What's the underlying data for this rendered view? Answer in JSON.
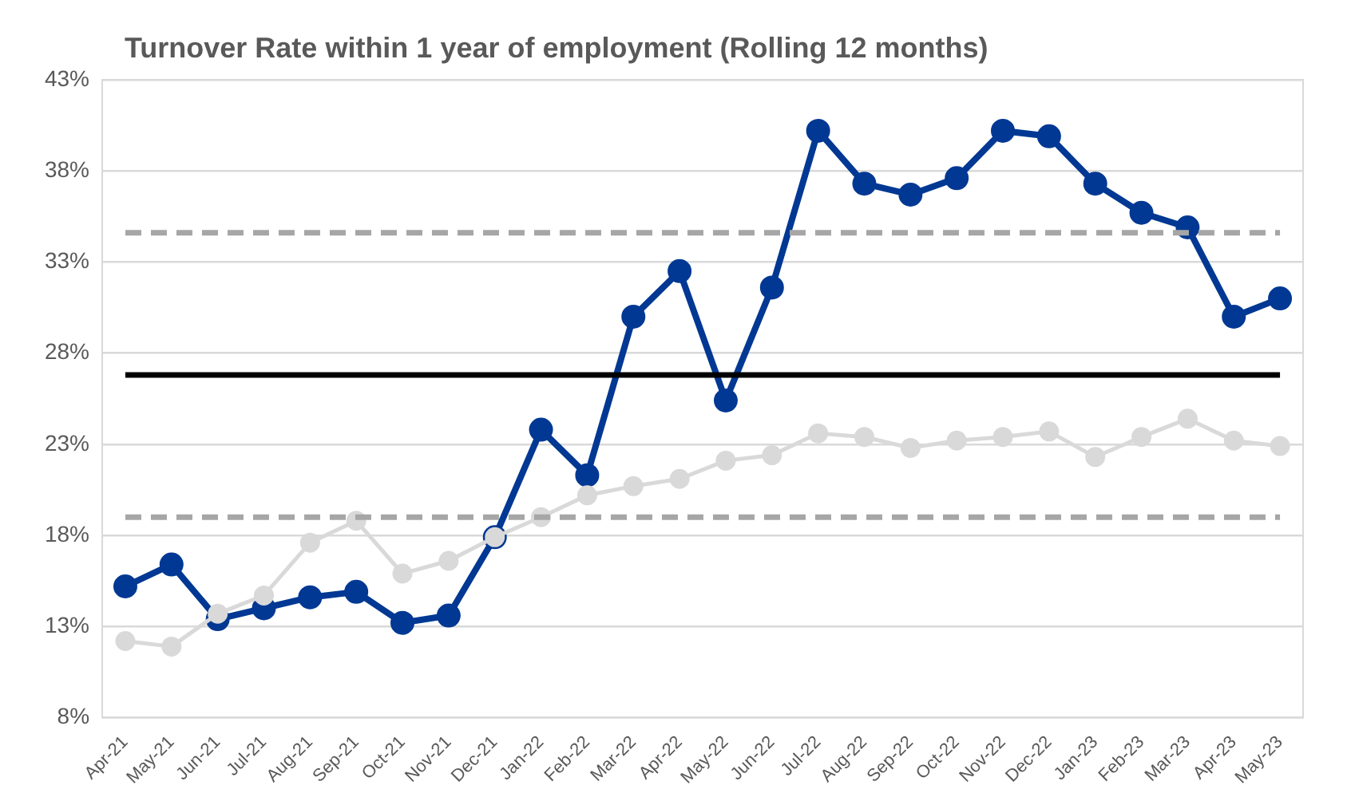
{
  "chart_data": {
    "type": "line",
    "title": "Turnover Rate within 1 year of employment (Rolling 12 months)",
    "categories": [
      "Apr-21",
      "May-21",
      "Jun-21",
      "Jul-21",
      "Aug-21",
      "Sep-21",
      "Oct-21",
      "Nov-21",
      "Dec-21",
      "Jan-22",
      "Feb-22",
      "Mar-22",
      "Apr-22",
      "May-22",
      "Jun-22",
      "Jul-22",
      "Aug-22",
      "Sep-22",
      "Oct-22",
      "Nov-22",
      "Dec-22",
      "Jan-23",
      "Feb-23",
      "Mar-23",
      "Apr-23",
      "May-23"
    ],
    "series": [
      {
        "color": "#d9d9d9",
        "values": [
          12.2,
          11.9,
          13.7,
          14.7,
          17.6,
          18.8,
          15.9,
          16.6,
          17.9,
          19.0,
          20.2,
          20.7,
          21.1,
          22.1,
          22.4,
          23.6,
          23.4,
          22.8,
          23.2,
          23.4,
          23.7,
          22.3,
          23.4,
          24.4,
          23.2,
          22.9
        ]
      },
      {
        "color": "#003893",
        "values": [
          15.2,
          16.4,
          13.4,
          14.0,
          14.6,
          14.9,
          13.2,
          13.6,
          17.9,
          23.8,
          21.3,
          30.0,
          32.5,
          25.4,
          31.6,
          40.2,
          37.3,
          36.7,
          37.6,
          40.2,
          39.9,
          37.3,
          35.7,
          34.9,
          30.0,
          31.0
        ]
      }
    ],
    "ylim": [
      8,
      43
    ],
    "yticks": [
      {
        "value": 8,
        "label": "8%"
      },
      {
        "value": 13,
        "label": "13%"
      },
      {
        "value": 18,
        "label": "18%"
      },
      {
        "value": 23,
        "label": "23%"
      },
      {
        "value": 28,
        "label": "28%"
      },
      {
        "value": 33,
        "label": "33%"
      },
      {
        "value": 38,
        "label": "38%"
      },
      {
        "value": 43,
        "label": "43%"
      }
    ],
    "ref_lines": [
      {
        "axis": "y",
        "value": 34.6,
        "color": "#a6a6a6",
        "line_style": "dashed"
      },
      {
        "axis": "y",
        "value": 26.8,
        "color": "#000000",
        "line_style": "solid"
      },
      {
        "axis": "y",
        "value": 19.0,
        "color": "#a6a6a6",
        "line_style": "dashed"
      }
    ],
    "grid": "y",
    "legend": false,
    "marker": "circle",
    "line_style": "solid"
  }
}
